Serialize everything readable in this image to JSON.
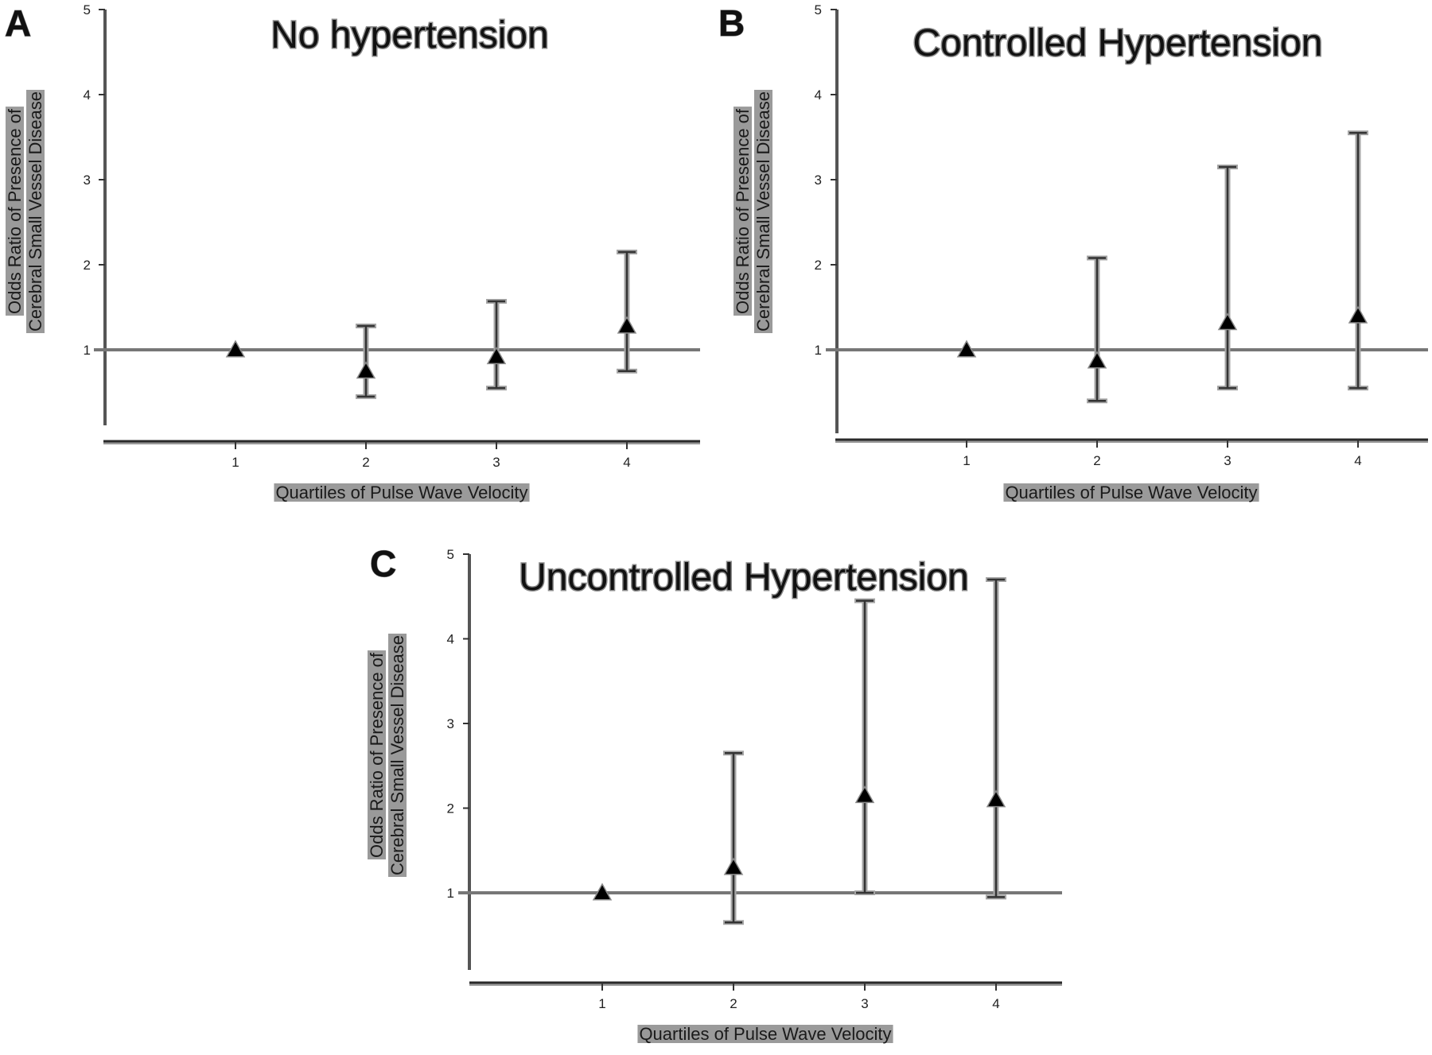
{
  "chart_data": [
    {
      "type": "scatter",
      "panel_letter": "A",
      "title": "No hypertension",
      "xlabel": "Quartiles of Pulse Wave Velocity",
      "ylabel_line1": "Odds Ratio of Presence of",
      "ylabel_line2": "Cerebral Small Vessel Disease",
      "x": [
        1,
        2,
        3,
        4
      ],
      "x_tick_labels": [
        "1",
        "2",
        "3",
        "4"
      ],
      "y_ticks": [
        1,
        2,
        3,
        4,
        5
      ],
      "y_tick_labels": [
        "1",
        "2",
        "3",
        "4",
        "5"
      ],
      "ylim": [
        0,
        5
      ],
      "reference_line": 1,
      "series": [
        {
          "values": [
            1.0,
            0.75,
            0.92,
            1.28
          ],
          "ci_lower": [
            1.0,
            0.45,
            0.55,
            0.75
          ],
          "ci_upper": [
            1.0,
            1.28,
            1.57,
            2.15
          ]
        }
      ],
      "marker": "triangle",
      "grid": false
    },
    {
      "type": "scatter",
      "panel_letter": "B",
      "title": "Controlled Hypertension",
      "xlabel": "Quartiles of Pulse Wave Velocity",
      "ylabel_line1": "Odds Ratio of Presence of",
      "ylabel_line2": "Cerebral Small Vessel Disease",
      "x": [
        1,
        2,
        3,
        4
      ],
      "x_tick_labels": [
        "1",
        "2",
        "3",
        "4"
      ],
      "y_ticks": [
        1,
        2,
        3,
        4,
        5
      ],
      "y_tick_labels": [
        "1",
        "2",
        "3",
        "4",
        "5"
      ],
      "ylim": [
        0,
        5
      ],
      "reference_line": 1,
      "series": [
        {
          "values": [
            1.0,
            0.87,
            1.32,
            1.4
          ],
          "ci_lower": [
            1.0,
            0.4,
            0.55,
            0.55
          ],
          "ci_upper": [
            1.0,
            2.08,
            3.15,
            3.55
          ]
        }
      ],
      "marker": "triangle",
      "grid": false
    },
    {
      "type": "scatter",
      "panel_letter": "C",
      "title": "Uncontrolled Hypertension",
      "xlabel": "Quartiles of Pulse Wave Velocity",
      "ylabel_line1": "Odds Ratio of Presence of",
      "ylabel_line2": "Cerebral Small Vessel Disease",
      "x": [
        1,
        2,
        3,
        4
      ],
      "x_tick_labels": [
        "1",
        "2",
        "3",
        "4"
      ],
      "y_ticks": [
        1,
        2,
        3,
        4,
        5
      ],
      "y_tick_labels": [
        "1",
        "2",
        "3",
        "4",
        "5"
      ],
      "ylim": [
        0,
        5
      ],
      "reference_line": 1,
      "series": [
        {
          "values": [
            1.0,
            1.3,
            2.15,
            2.1
          ],
          "ci_lower": [
            1.0,
            0.65,
            1.0,
            0.95
          ],
          "ci_upper": [
            1.0,
            2.65,
            4.45,
            4.7
          ]
        }
      ],
      "marker": "triangle",
      "grid": false
    }
  ]
}
